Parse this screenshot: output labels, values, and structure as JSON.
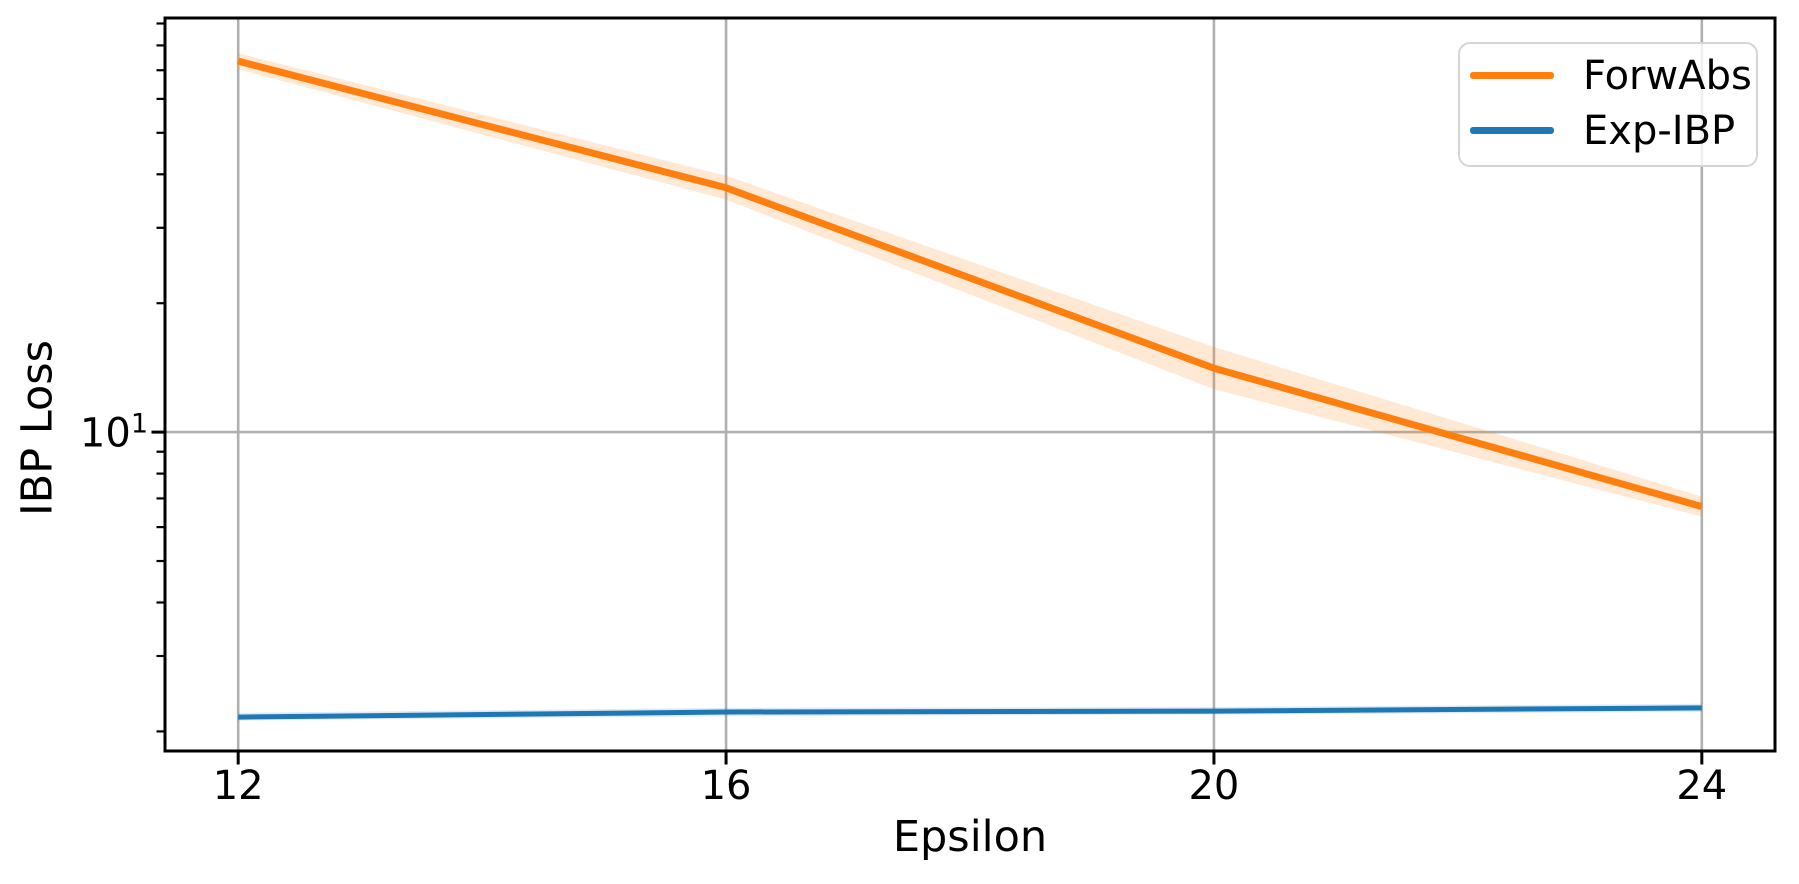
{
  "figure": {
    "background": "#ffffff",
    "text_color": "#000000",
    "spine_color": "#000000",
    "grid_color": "#b0b0b0"
  },
  "chart_data": {
    "type": "line",
    "title": "",
    "xlabel": "Epsilon",
    "ylabel": "IBP Loss",
    "xscale": "linear",
    "yscale": "log",
    "xlim": [
      11.4,
      24.6
    ],
    "ylim": [
      1.8,
      92.7
    ],
    "grid": true,
    "legend_position": "upper right",
    "x": [
      12,
      16,
      20,
      24
    ],
    "series": [
      {
        "name": "ForwAbs",
        "color": "#ff7f0e",
        "values": [
          73.5,
          37.2,
          14.1,
          6.7
        ],
        "band_low": [
          70.4,
          34.9,
          12.6,
          6.35
        ],
        "band_high": [
          76.7,
          39.7,
          15.8,
          7.07
        ],
        "band_opacity": 0.18,
        "line_width": 7
      },
      {
        "name": "Exp-IBP",
        "color": "#1f77b4",
        "values": [
          2.16,
          2.22,
          2.23,
          2.27
        ],
        "band_low": [
          2.12,
          2.17,
          2.19,
          2.22
        ],
        "band_high": [
          2.21,
          2.27,
          2.28,
          2.32
        ],
        "band_opacity": 0.15,
        "line_width": 5
      }
    ],
    "xticks": {
      "values": [
        12,
        16,
        20,
        24
      ],
      "labels": [
        "12",
        "16",
        "20",
        "24"
      ]
    },
    "ytick_major": {
      "value": 10,
      "base": "10",
      "exponent": "1"
    },
    "yticks_minor": [
      2,
      3,
      4,
      5,
      6,
      7,
      8,
      9,
      20,
      30,
      40,
      50,
      60,
      70,
      80,
      90
    ]
  }
}
